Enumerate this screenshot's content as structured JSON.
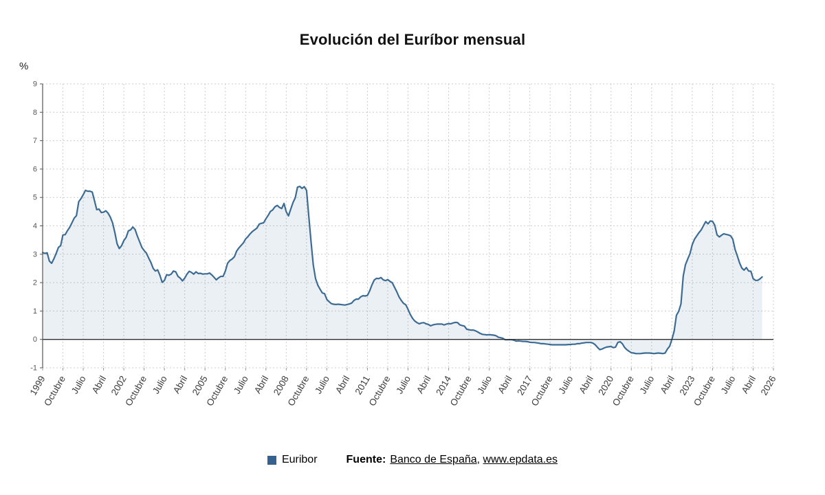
{
  "page": {
    "title": "Evolución del Euríbor mensual",
    "y_unit_label": "%"
  },
  "legend": {
    "series_label": "Euribor",
    "swatch_color": "#35618e"
  },
  "source": {
    "label": "Fuente:",
    "link1": "Banco de España",
    "separator": ", ",
    "link2": "www.epdata.es"
  },
  "chart_data": {
    "type": "area",
    "title": "Evolución del Euríbor mensual",
    "xlabel": "",
    "ylabel": "%",
    "ylim": [
      -1,
      9
    ],
    "y_ticks": [
      -1,
      0,
      1,
      2,
      3,
      4,
      5,
      6,
      7,
      8,
      9
    ],
    "grid": true,
    "legend_position": "bottom",
    "x_start": "1999-01",
    "x_end": "2025-08",
    "frequency": "monthly",
    "x_tick_every_months": 9,
    "x_tick_labels": [
      "1999",
      "Octubre",
      "Julio",
      "Abril",
      "2002",
      "Octubre",
      "Julio",
      "Abril",
      "2005",
      "Octubre",
      "Julio",
      "Abril",
      "2008",
      "Octubre",
      "Julio",
      "Abril",
      "2011",
      "Octubre",
      "Julio",
      "Abril",
      "2014",
      "Octubre",
      "Julio",
      "Abril",
      "2017",
      "Octubre",
      "Julio",
      "Abril",
      "2020",
      "Octubre",
      "Julio",
      "Abril",
      "2023",
      "Octubre",
      "Julio",
      "Abril",
      "2026"
    ],
    "series": [
      {
        "name": "Euribor",
        "color": "#3c6b94",
        "fill": "rgba(60,107,148,0.10)",
        "values": [
          3.06,
          3.03,
          3.05,
          2.76,
          2.68,
          2.84,
          3.03,
          3.24,
          3.3,
          3.68,
          3.69,
          3.83,
          3.95,
          4.11,
          4.27,
          4.36,
          4.85,
          4.96,
          5.1,
          5.25,
          5.22,
          5.22,
          5.19,
          4.88,
          4.57,
          4.59,
          4.47,
          4.48,
          4.53,
          4.45,
          4.31,
          4.11,
          3.77,
          3.37,
          3.2,
          3.3,
          3.48,
          3.59,
          3.82,
          3.86,
          3.96,
          3.87,
          3.64,
          3.44,
          3.24,
          3.13,
          3.04,
          2.87,
          2.71,
          2.5,
          2.41,
          2.45,
          2.26,
          2.01,
          2.08,
          2.28,
          2.26,
          2.3,
          2.41,
          2.38,
          2.22,
          2.16,
          2.06,
          2.16,
          2.3,
          2.4,
          2.36,
          2.3,
          2.38,
          2.32,
          2.33,
          2.3,
          2.31,
          2.31,
          2.34,
          2.27,
          2.19,
          2.1,
          2.17,
          2.22,
          2.22,
          2.41,
          2.68,
          2.78,
          2.83,
          2.91,
          3.11,
          3.22,
          3.31,
          3.4,
          3.54,
          3.62,
          3.72,
          3.8,
          3.86,
          3.92,
          4.06,
          4.09,
          4.11,
          4.25,
          4.37,
          4.51,
          4.56,
          4.67,
          4.72,
          4.65,
          4.61,
          4.79,
          4.5,
          4.35,
          4.59,
          4.82,
          4.99,
          5.36,
          5.39,
          5.32,
          5.38,
          5.25,
          4.35,
          3.45,
          2.62,
          2.14,
          1.91,
          1.77,
          1.64,
          1.61,
          1.41,
          1.33,
          1.26,
          1.24,
          1.23,
          1.24,
          1.23,
          1.22,
          1.21,
          1.23,
          1.25,
          1.28,
          1.37,
          1.42,
          1.42,
          1.5,
          1.54,
          1.53,
          1.55,
          1.71,
          1.92,
          2.09,
          2.15,
          2.14,
          2.18,
          2.1,
          2.07,
          2.11,
          2.04,
          2.0,
          1.84,
          1.68,
          1.5,
          1.37,
          1.27,
          1.22,
          1.06,
          0.88,
          0.74,
          0.65,
          0.59,
          0.55,
          0.58,
          0.59,
          0.55,
          0.53,
          0.48,
          0.51,
          0.53,
          0.54,
          0.54,
          0.54,
          0.51,
          0.54,
          0.56,
          0.55,
          0.58,
          0.6,
          0.59,
          0.51,
          0.49,
          0.47,
          0.36,
          0.34,
          0.33,
          0.33,
          0.3,
          0.26,
          0.21,
          0.18,
          0.17,
          0.16,
          0.17,
          0.16,
          0.15,
          0.13,
          0.08,
          0.06,
          0.04,
          -0.01,
          -0.01,
          -0.01,
          -0.01,
          -0.03,
          -0.06,
          -0.05,
          -0.06,
          -0.07,
          -0.07,
          -0.08,
          -0.1,
          -0.11,
          -0.11,
          -0.12,
          -0.13,
          -0.15,
          -0.15,
          -0.16,
          -0.17,
          -0.18,
          -0.19,
          -0.19,
          -0.19,
          -0.19,
          -0.19,
          -0.19,
          -0.19,
          -0.18,
          -0.18,
          -0.17,
          -0.17,
          -0.15,
          -0.15,
          -0.13,
          -0.12,
          -0.11,
          -0.11,
          -0.11,
          -0.13,
          -0.19,
          -0.28,
          -0.36,
          -0.34,
          -0.3,
          -0.27,
          -0.26,
          -0.25,
          -0.29,
          -0.27,
          -0.11,
          -0.08,
          -0.15,
          -0.28,
          -0.36,
          -0.42,
          -0.47,
          -0.48,
          -0.5,
          -0.5,
          -0.5,
          -0.49,
          -0.48,
          -0.48,
          -0.48,
          -0.49,
          -0.5,
          -0.49,
          -0.48,
          -0.49,
          -0.5,
          -0.48,
          -0.34,
          -0.24,
          0.01,
          0.29,
          0.85,
          0.99,
          1.25,
          2.23,
          2.63,
          2.83,
          3.02,
          3.34,
          3.53,
          3.65,
          3.76,
          3.86,
          4.01,
          4.15,
          4.07,
          4.17,
          4.16,
          4.02,
          3.68,
          3.61,
          3.67,
          3.72,
          3.7,
          3.68,
          3.65,
          3.53,
          3.17,
          2.94,
          2.69,
          2.51,
          2.44,
          2.53,
          2.41,
          2.4,
          2.14,
          2.08,
          2.08,
          2.13,
          2.2
        ]
      }
    ]
  }
}
